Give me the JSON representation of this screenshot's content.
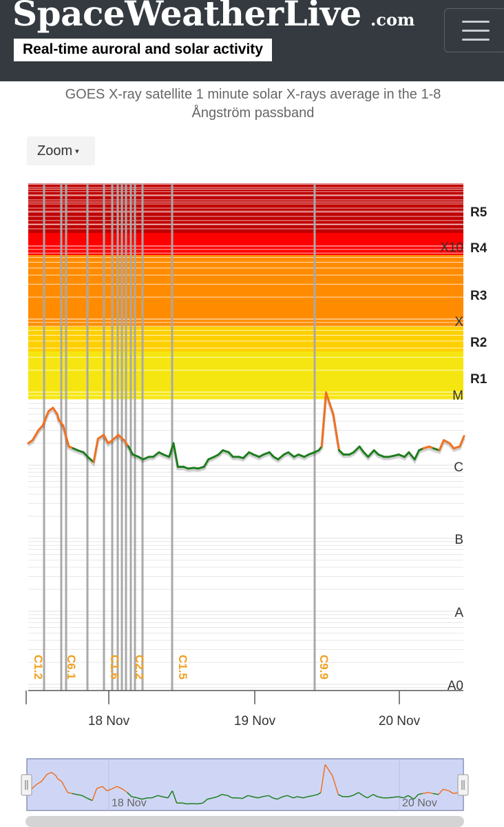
{
  "header": {
    "logo": "SpaceWeatherLive",
    "logo_suffix": ".com",
    "tagline": "Real-time auroral and solar activity",
    "menu_icon": "hamburger-menu-icon"
  },
  "chart_header": {
    "subtitle_line1": "GOES X-ray satellite 1 minute solar X-rays average in the 1-8",
    "subtitle_line2": "Ångström passband",
    "zoom_label": "Zoom",
    "zoom_caret": "▾"
  },
  "colors": {
    "header_bg": "#343a40",
    "r5": "#c00000",
    "r4": "#ff0000",
    "r3": "#ff8c00",
    "r2": "#ffd000",
    "r1": "#f5e612",
    "flux_above_c": "#f07020",
    "flux_below_c": "#1e7d1e",
    "flare_label": "#f0a020",
    "navigator_bg": "#cfd6f5"
  },
  "chart_data": {
    "type": "line",
    "y_scale": "log",
    "y_class_labels": [
      "X10",
      "X",
      "M",
      "C",
      "B",
      "A",
      "A0"
    ],
    "r_scale_labels": [
      "R5",
      "R4",
      "R3",
      "R2",
      "R1"
    ],
    "x_tick_labels": [
      "18 Nov",
      "19 Nov",
      "20 Nov"
    ],
    "flares": [
      {
        "label": "C1.2"
      },
      {
        "label": "C6.1"
      },
      {
        "label": "C1.6"
      },
      {
        "label": "C2.2"
      },
      {
        "label": "C1.5"
      },
      {
        "label": "C9.9"
      }
    ],
    "series": [
      {
        "x_days": [
          0.0,
          0.03,
          0.07,
          0.1,
          0.14,
          0.17,
          0.2,
          0.21,
          0.24,
          0.28,
          0.31,
          0.34,
          0.38,
          0.41,
          0.45,
          0.48,
          0.52,
          0.55,
          0.58,
          0.62,
          0.66,
          0.69,
          0.72,
          0.76,
          0.79,
          0.83,
          0.86,
          0.9,
          0.93,
          0.97,
          1.0,
          1.03,
          1.07,
          1.1,
          1.14,
          1.17,
          1.21,
          1.24,
          1.28,
          1.31,
          1.34,
          1.38,
          1.41,
          1.45,
          1.48,
          1.52,
          1.55,
          1.59,
          1.62,
          1.66,
          1.69,
          1.72,
          1.76,
          1.79,
          1.83,
          1.86,
          1.9,
          1.93,
          1.97,
          2.0,
          2.02,
          2.05,
          2.1,
          2.14,
          2.17,
          2.21,
          2.24,
          2.28,
          2.31,
          2.34,
          2.38,
          2.41,
          2.45,
          2.48,
          2.52,
          2.55,
          2.59,
          2.62,
          2.66,
          2.69,
          2.72,
          2.76,
          2.79,
          2.83,
          2.86,
          2.9,
          2.93,
          2.97,
          3.0
        ],
        "flux": [
          2e-06,
          2.2e-06,
          3e-06,
          3.5e-06,
          5.5e-06,
          6.1e-06,
          5e-06,
          4.2e-06,
          3.5e-06,
          1.8e-06,
          1.7e-06,
          1.6e-06,
          1.5e-06,
          1.3e-06,
          1.1e-06,
          2.3e-06,
          2.6e-06,
          2e-06,
          2.2e-06,
          2.6e-06,
          2.2e-06,
          1.8e-06,
          1.4e-06,
          1.3e-06,
          1.2e-06,
          1.3e-06,
          1.3e-06,
          1.5e-06,
          1.4e-06,
          1.3e-06,
          2e-06,
          9.5e-07,
          9.5e-07,
          9e-07,
          9.2e-07,
          9e-07,
          9.5e-07,
          1.2e-06,
          1.3e-06,
          1.4e-06,
          1.6e-06,
          1.5e-06,
          1.3e-06,
          1.3e-06,
          1.25e-06,
          1.5e-06,
          1.4e-06,
          1.3e-06,
          1.4e-06,
          1.5e-06,
          1.3e-06,
          1.2e-06,
          1.4e-06,
          1.5e-06,
          1.3e-06,
          1.4e-06,
          1.3e-06,
          1.4e-06,
          1.5e-06,
          1.6e-06,
          1.8e-06,
          9.9e-06,
          5e-06,
          1.6e-06,
          1.4e-06,
          1.4e-06,
          1.5e-06,
          1.8e-06,
          1.5e-06,
          1.3e-06,
          1.6e-06,
          1.4e-06,
          1.3e-06,
          1.3e-06,
          1.35e-06,
          1.4e-06,
          1.3e-06,
          1.5e-06,
          1.2e-06,
          1.6e-06,
          1.7e-06,
          1.8e-06,
          1.7e-06,
          1.6e-06,
          2.2e-06,
          2e-06,
          1.7e-06,
          1.8e-06,
          2.5e-06
        ]
      }
    ]
  }
}
